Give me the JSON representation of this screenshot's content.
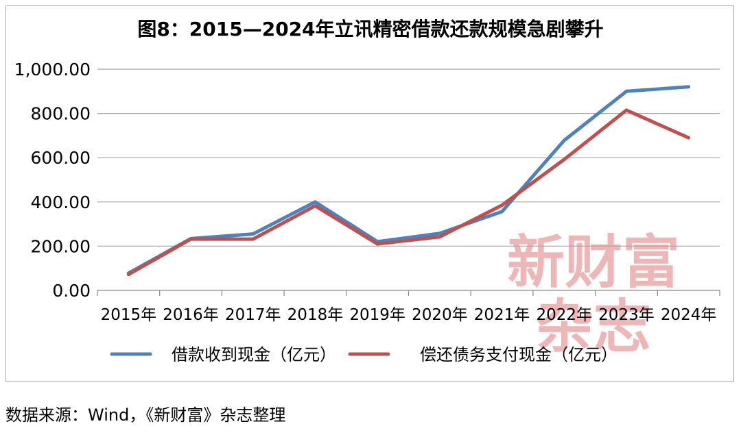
{
  "chart_data": {
    "type": "line",
    "title": "图8：2015—2024年立讯精密借款还款规模急剧攀升",
    "categories": [
      "2015年",
      "2016年",
      "2017年",
      "2018年",
      "2019年",
      "2020年",
      "2021年",
      "2022年",
      "2023年",
      "2024年"
    ],
    "ylim": [
      0,
      1000
    ],
    "yticks": [
      "0.00",
      "200.00",
      "400.00",
      "600.00",
      "800.00",
      "1,000.00"
    ],
    "grid": true,
    "legend_position": "bottom",
    "series": [
      {
        "name": "借款收到现金（亿元）",
        "color": "#4f81bd",
        "values": [
          78,
          234,
          255,
          400,
          220,
          258,
          356,
          678,
          900,
          920
        ]
      },
      {
        "name": "偿还债务支付现金（亿元）",
        "color": "#c0504d",
        "values": [
          72,
          232,
          232,
          382,
          210,
          242,
          385,
          592,
          815,
          690
        ]
      }
    ]
  },
  "watermark": {
    "line1": "新财富",
    "line2": "杂志",
    "color": "#e8a0a0"
  },
  "source": "数据来源：Wind，《新财富》杂志整理"
}
